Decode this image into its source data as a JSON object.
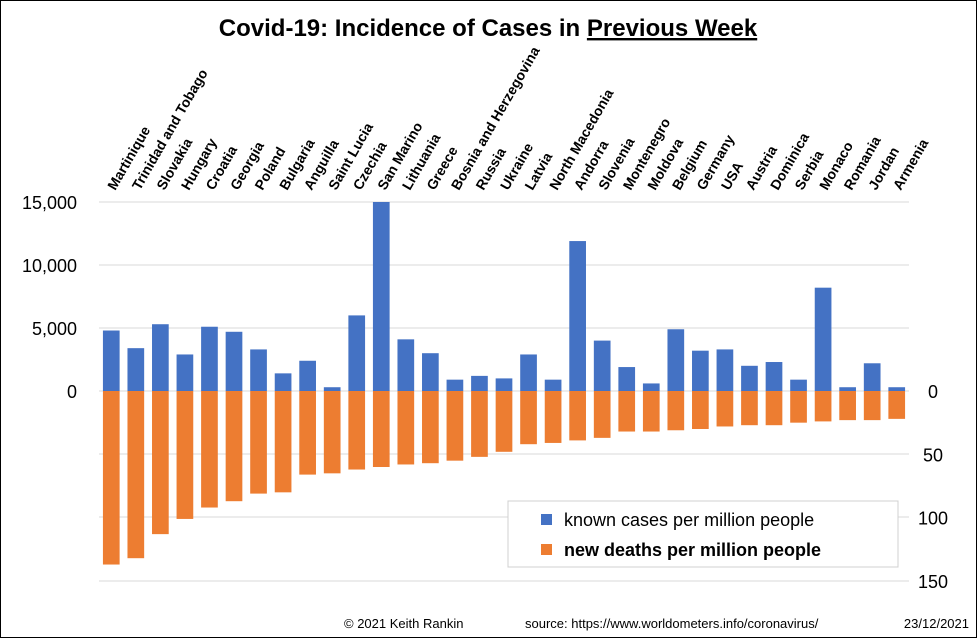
{
  "chart_data": {
    "type": "bar",
    "title_prefix": "Covid-19: Incidence of Cases in ",
    "title_emphasis": "Previous Week",
    "categories": [
      "Martinique",
      "Trinidad and Tobago",
      "Slovakia",
      "Hungary",
      "Croatia",
      "Georgia",
      "Poland",
      "Bulgaria",
      "Anguilla",
      "Saint Lucia",
      "Czechia",
      "San Marino",
      "Lithuania",
      "Greece",
      "Bosnia and Herzegovina",
      "Russia",
      "Ukraine",
      "Latvia",
      "North Macedonia",
      "Andorra",
      "Slovenia",
      "Montenegro",
      "Moldova",
      "Belgium",
      "Germany",
      "USA",
      "Austria",
      "Dominica",
      "Serbia",
      "Monaco",
      "Romania",
      "Jordan",
      "Armenia"
    ],
    "series": [
      {
        "name": "known cases per million people",
        "axis": "left",
        "color": "#4472C4",
        "values": [
          4800,
          3400,
          5300,
          2900,
          5100,
          4700,
          3300,
          1400,
          2400,
          300,
          6000,
          15000,
          4100,
          3000,
          900,
          1200,
          1000,
          2900,
          900,
          11900,
          4000,
          1900,
          600,
          4900,
          3200,
          3300,
          2000,
          2300,
          900,
          8200,
          300,
          2200,
          300
        ]
      },
      {
        "name": "new deaths per million people",
        "axis": "right",
        "color": "#ED7D31",
        "values": [
          137,
          132,
          113,
          101,
          92,
          87,
          81,
          80,
          66,
          65,
          62,
          60,
          58,
          57,
          55,
          52,
          48,
          42,
          41,
          39,
          37,
          32,
          32,
          31,
          30,
          28,
          27,
          27,
          25,
          24,
          23,
          23,
          22
        ]
      }
    ],
    "y_left": {
      "range": [
        0,
        15000
      ],
      "ticks": [
        "15,000",
        "10,000",
        "5,000",
        "0"
      ]
    },
    "y_right": {
      "range": [
        0,
        150
      ],
      "ticks": [
        "0",
        "50",
        "100",
        "150"
      ],
      "inverted": true
    },
    "legend_position": "bottom-right",
    "grid": true
  },
  "footer": {
    "credit": "© 2021   Keith Rankin",
    "source": "source:  https://www.worldometers.info/coronavirus/",
    "date": "23/12/2021"
  }
}
